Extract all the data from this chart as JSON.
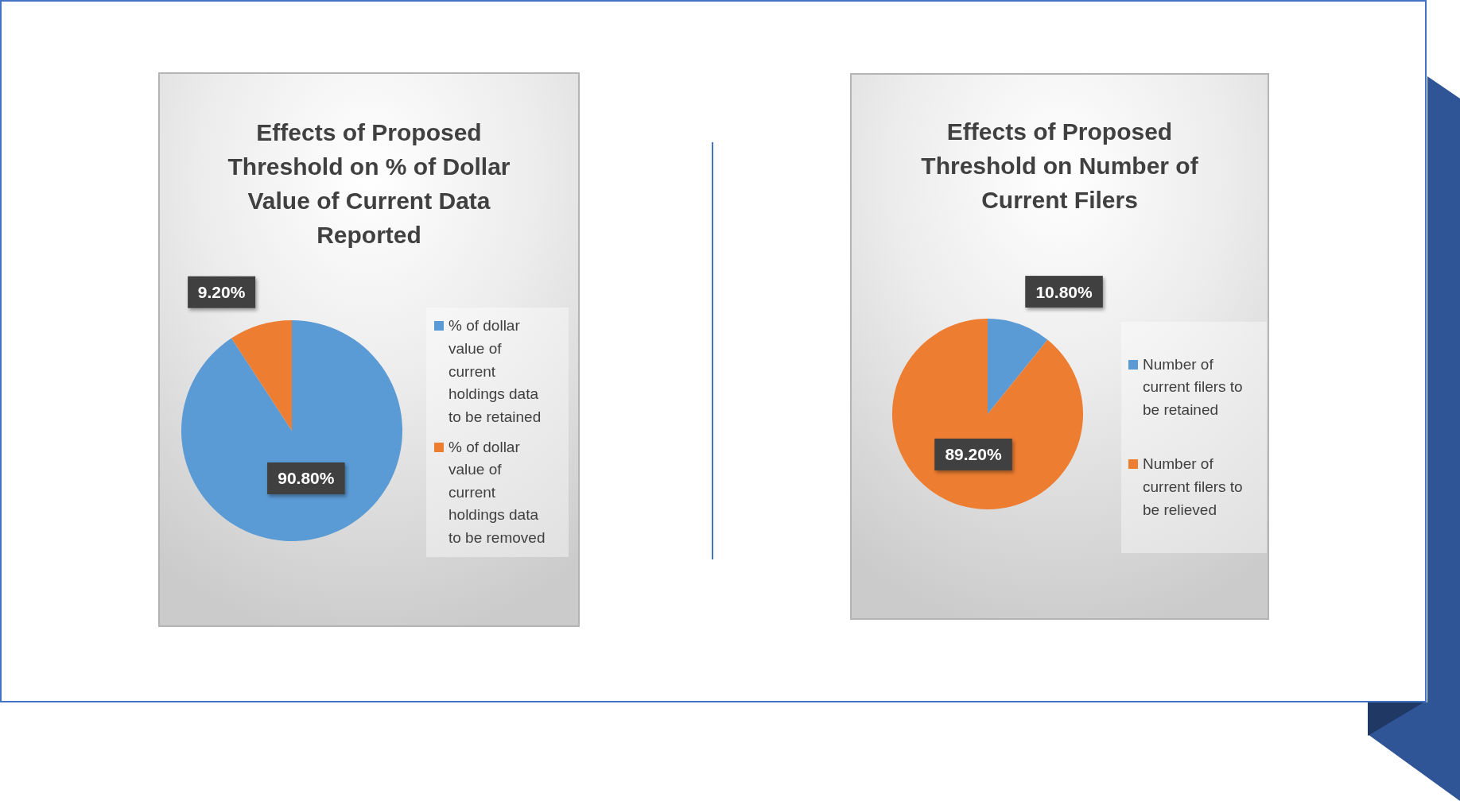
{
  "chart_data": [
    {
      "type": "pie",
      "title": "Effects of Proposed Threshold on % of Dollar Value of Current Data Reported",
      "categories": [
        "% of dollar value of current holdings data to be retained",
        "% of dollar value of current holdings data to be removed"
      ],
      "values": [
        90.8,
        9.2
      ],
      "colors": [
        "#5b9bd5",
        "#ed7d31"
      ],
      "value_labels": [
        "90.80%",
        "9.20%"
      ],
      "legend": "right"
    },
    {
      "type": "pie",
      "title": "Effects of Proposed Threshold on Number of Current Filers",
      "categories": [
        "Number of current filers to be retained",
        "Number of current filers to be relieved"
      ],
      "values": [
        10.8,
        89.2
      ],
      "colors": [
        "#5b9bd5",
        "#ed7d31"
      ],
      "value_labels": [
        "10.80%",
        "89.20%"
      ],
      "legend": "right"
    }
  ]
}
